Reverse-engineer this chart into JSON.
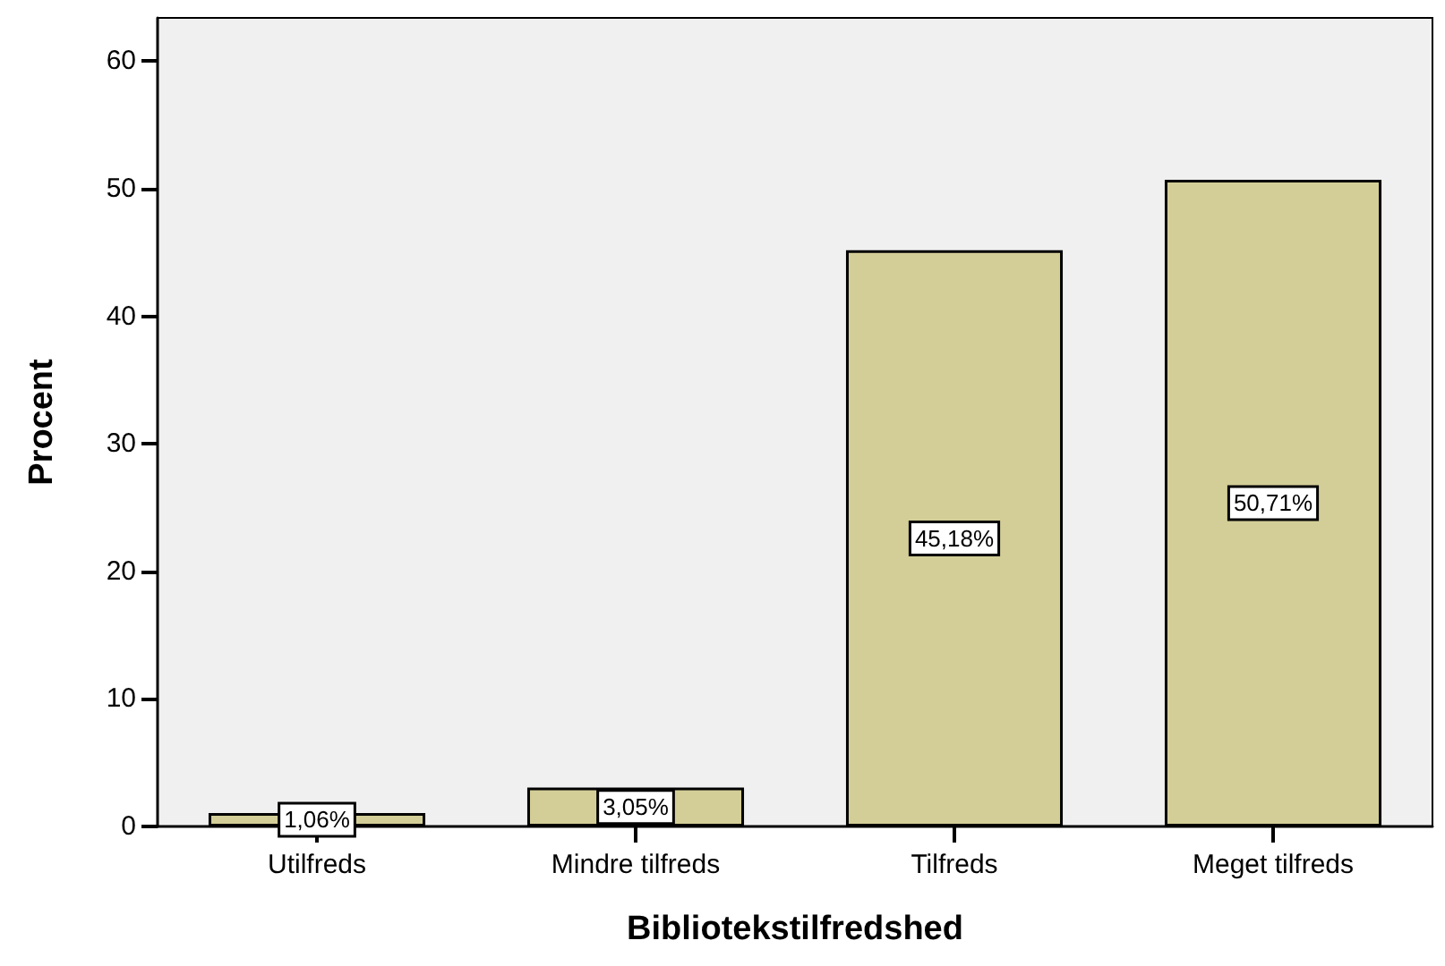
{
  "chart_data": {
    "type": "bar",
    "xlabel": "Bibliotekstilfredshed",
    "ylabel": "Procent",
    "categories": [
      "Utilfreds",
      "Mindre tilfreds",
      "Tilfreds",
      "Meget tilfreds"
    ],
    "values": [
      1.06,
      3.05,
      45.18,
      50.71
    ],
    "value_labels": [
      "1,06%",
      "3,05%",
      "45,18%",
      "50,71%"
    ],
    "color": "#d3ce97",
    "ylim": [
      0,
      63.4
    ],
    "yticks": [
      0,
      10,
      20,
      30,
      40,
      50,
      60
    ],
    "grid": false
  }
}
